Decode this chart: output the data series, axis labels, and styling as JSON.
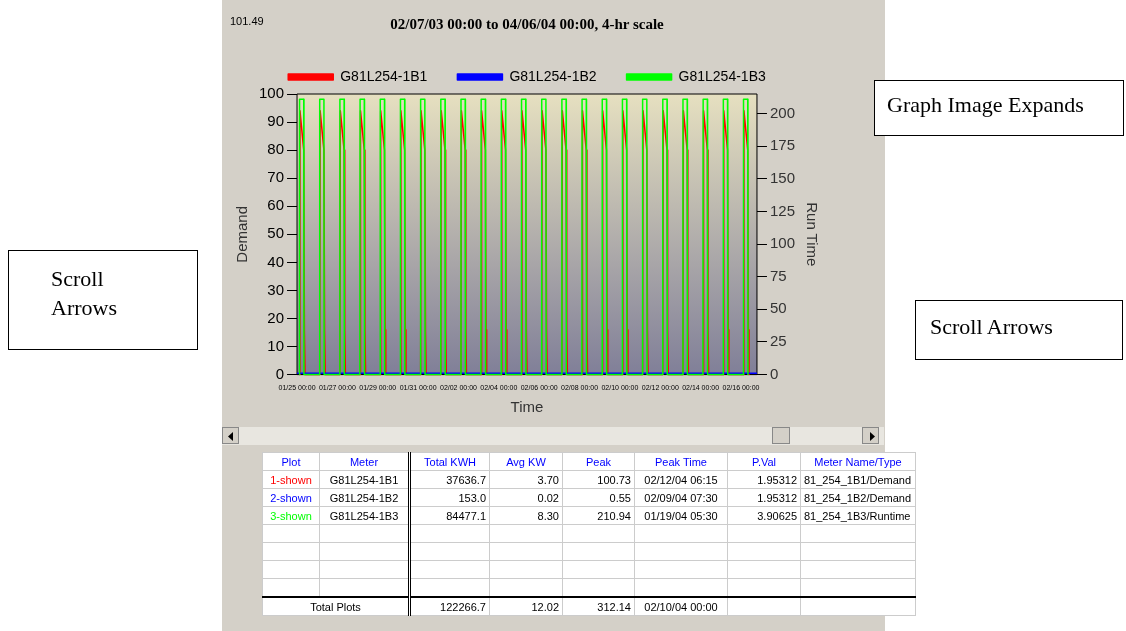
{
  "chart_data": {
    "type": "line",
    "title": "02/07/03 00:00 to 04/06/04 00:00, 4-hr scale",
    "xlabel": "Time",
    "ylabel": "Demand",
    "y2label": "Run Time",
    "legend": "top",
    "marker": "none",
    "xlim": [
      "--01-25T00:00",
      "--02-16T19:00"
    ],
    "xticks": [
      {
        "value": "--01-25T00:00",
        "label": "01/25 00:00"
      },
      {
        "value": "--01-27T00:00",
        "label": "01/27 00:00"
      },
      {
        "value": "--01-29T00:00",
        "label": "01/29 00:00"
      },
      {
        "value": "--01-31T00:00",
        "label": "01/31 00:00"
      },
      {
        "value": "--02-02T00:00",
        "label": "02/02 00:00"
      },
      {
        "value": "--02-04T00:00",
        "label": "02/04 00:00"
      },
      {
        "value": "--02-06T00:00",
        "label": "02/06 00:00"
      },
      {
        "value": "--02-08T00:00",
        "label": "02/08 00:00"
      },
      {
        "value": "--02-10T00:00",
        "label": "02/10 00:00"
      },
      {
        "value": "--02-12T00:00",
        "label": "02/12 00:00"
      },
      {
        "value": "--02-14T00:00",
        "label": "02/14 00:00"
      },
      {
        "value": "--02-16T00:00",
        "label": "02/16 00:00"
      }
    ],
    "ylim": [
      0,
      100
    ],
    "yticks": [
      0,
      10,
      20,
      30,
      40,
      50,
      60,
      70,
      80,
      90,
      100
    ],
    "y2lim": [
      0,
      215
    ],
    "y2ticks": [
      0,
      25,
      50,
      75,
      100,
      125,
      150,
      175,
      200
    ],
    "series": [
      {
        "name": "G81L254-1B1",
        "color": "#ff0000",
        "axis": "y",
        "x": [
          "--01-25T03:00",
          "--01-25T03:30",
          "--01-25T08:00",
          "--01-25T08:45",
          "--01-25T09:30",
          "--01-26T03:00",
          "--01-26T03:30",
          "--01-26T08:00",
          "--01-26T08:45",
          "--01-26T09:30",
          "--01-27T03:00",
          "--01-27T03:30",
          "--01-27T08:00",
          "--01-27T08:45",
          "--01-27T09:30",
          "--01-28T03:00",
          "--01-28T03:30",
          "--01-28T08:00",
          "--01-28T08:45",
          "--01-28T09:30",
          "--01-29T03:00",
          "--01-29T03:30",
          "--01-29T08:00",
          "--01-29T08:45",
          "--01-29T09:30",
          "--01-30T03:00",
          "--01-30T03:30",
          "--01-30T08:00",
          "--01-30T08:45",
          "--01-30T09:30",
          "--01-31T03:00",
          "--01-31T03:30",
          "--01-31T08:00",
          "--01-31T08:45",
          "--01-31T09:30",
          "--02-01T03:00",
          "--02-01T03:30",
          "--02-01T08:00",
          "--02-01T08:45",
          "--02-01T09:30",
          "--02-02T03:00",
          "--02-02T03:30",
          "--02-02T08:00",
          "--02-02T08:45",
          "--02-02T09:30",
          "--02-03T03:00",
          "--02-03T03:30",
          "--02-03T08:00",
          "--02-03T08:45",
          "--02-03T09:30",
          "--02-04T03:00",
          "--02-04T03:30",
          "--02-04T08:00",
          "--02-04T08:45",
          "--02-04T09:30",
          "--02-05T03:00",
          "--02-05T03:30",
          "--02-05T08:00",
          "--02-05T08:45",
          "--02-05T09:30",
          "--02-06T03:00",
          "--02-06T03:30",
          "--02-06T08:00",
          "--02-06T08:45",
          "--02-06T09:30",
          "--02-07T03:00",
          "--02-07T03:30",
          "--02-07T08:00",
          "--02-07T08:45",
          "--02-07T09:30",
          "--02-08T03:00",
          "--02-08T03:30",
          "--02-08T08:00",
          "--02-08T08:45",
          "--02-08T09:30",
          "--02-09T03:00",
          "--02-09T03:30",
          "--02-09T08:00",
          "--02-09T08:45",
          "--02-09T09:30",
          "--02-10T03:00",
          "--02-10T03:30",
          "--02-10T08:00",
          "--02-10T08:45",
          "--02-10T09:30",
          "--02-11T03:00",
          "--02-11T03:30",
          "--02-11T08:00",
          "--02-11T08:45",
          "--02-11T09:30",
          "--02-12T03:00",
          "--02-12T03:30",
          "--02-12T08:00",
          "--02-12T08:45",
          "--02-12T09:30",
          "--02-13T03:00",
          "--02-13T03:30",
          "--02-13T08:00",
          "--02-13T08:45",
          "--02-13T09:30",
          "--02-14T03:00",
          "--02-14T03:30",
          "--02-14T08:00",
          "--02-14T08:45",
          "--02-14T09:30",
          "--02-15T03:00",
          "--02-15T03:30",
          "--02-15T08:00",
          "--02-15T08:45",
          "--02-15T09:30",
          "--02-16T03:00",
          "--02-16T03:30",
          "--02-16T08:00",
          "--02-16T08:45",
          "--02-16T09:30"
        ],
        "values": [
          0,
          94,
          80,
          16,
          0,
          0,
          94,
          80,
          16,
          0,
          0,
          94,
          80,
          16,
          0,
          0,
          94,
          80,
          16,
          0,
          0,
          94,
          80,
          16,
          0,
          0,
          94,
          80,
          16,
          0,
          0,
          94,
          80,
          16,
          0,
          0,
          94,
          80,
          16,
          0,
          0,
          94,
          80,
          16,
          0,
          0,
          94,
          80,
          16,
          0,
          0,
          94,
          80,
          16,
          0,
          0,
          94,
          80,
          16,
          0,
          0,
          94,
          80,
          16,
          0,
          0,
          94,
          80,
          16,
          0,
          0,
          94,
          80,
          16,
          0,
          0,
          94,
          80,
          16,
          0,
          0,
          94,
          80,
          16,
          0,
          0,
          94,
          80,
          16,
          0,
          0,
          94,
          80,
          16,
          0,
          0,
          94,
          80,
          16,
          0,
          0,
          94,
          80,
          16,
          0,
          0,
          94,
          80,
          16,
          0,
          0,
          94,
          80,
          16,
          0
        ]
      },
      {
        "name": "G81L254-1B2",
        "color": "#0000ff",
        "axis": "y",
        "x": [
          "--01-25T00:00",
          "--02-16T19:00"
        ],
        "values": [
          0.5,
          0.5
        ]
      },
      {
        "name": "G81L254-1B3",
        "color": "#00ff00",
        "axis": "y2",
        "x": [
          "--01-25T02:45",
          "--01-25T03:00",
          "--01-25T08:00",
          "--01-25T08:15",
          "--01-26T02:45",
          "--01-26T03:00",
          "--01-26T08:00",
          "--01-26T08:15",
          "--01-27T02:45",
          "--01-27T03:00",
          "--01-27T08:00",
          "--01-27T08:15",
          "--01-28T02:45",
          "--01-28T03:00",
          "--01-28T08:00",
          "--01-28T08:15",
          "--01-29T02:45",
          "--01-29T03:00",
          "--01-29T08:00",
          "--01-29T08:15",
          "--01-30T02:45",
          "--01-30T03:00",
          "--01-30T08:00",
          "--01-30T08:15",
          "--01-31T02:45",
          "--01-31T03:00",
          "--01-31T08:00",
          "--01-31T08:15",
          "--02-01T02:45",
          "--02-01T03:00",
          "--02-01T08:00",
          "--02-01T08:15",
          "--02-02T02:45",
          "--02-02T03:00",
          "--02-02T08:00",
          "--02-02T08:15",
          "--02-03T02:45",
          "--02-03T03:00",
          "--02-03T08:00",
          "--02-03T08:15",
          "--02-04T02:45",
          "--02-04T03:00",
          "--02-04T08:00",
          "--02-04T08:15",
          "--02-05T02:45",
          "--02-05T03:00",
          "--02-05T08:00",
          "--02-05T08:15",
          "--02-06T02:45",
          "--02-06T03:00",
          "--02-06T08:00",
          "--02-06T08:15",
          "--02-07T02:45",
          "--02-07T03:00",
          "--02-07T08:00",
          "--02-07T08:15",
          "--02-08T02:45",
          "--02-08T03:00",
          "--02-08T08:00",
          "--02-08T08:15",
          "--02-09T02:45",
          "--02-09T03:00",
          "--02-09T08:00",
          "--02-09T08:15",
          "--02-10T02:45",
          "--02-10T03:00",
          "--02-10T08:00",
          "--02-10T08:15",
          "--02-11T02:45",
          "--02-11T03:00",
          "--02-11T08:00",
          "--02-11T08:15",
          "--02-12T02:45",
          "--02-12T03:00",
          "--02-12T08:00",
          "--02-12T08:15",
          "--02-13T02:45",
          "--02-13T03:00",
          "--02-13T08:00",
          "--02-13T08:15",
          "--02-14T02:45",
          "--02-14T03:00",
          "--02-14T08:00",
          "--02-14T08:15",
          "--02-15T02:45",
          "--02-15T03:00",
          "--02-15T08:00",
          "--02-15T08:15",
          "--02-16T02:45",
          "--02-16T03:00",
          "--02-16T08:00",
          "--02-16T08:15"
        ],
        "values": [
          0,
          211,
          211,
          0,
          0,
          211,
          211,
          0,
          0,
          211,
          211,
          0,
          0,
          211,
          211,
          0,
          0,
          211,
          211,
          0,
          0,
          211,
          211,
          0,
          0,
          211,
          211,
          0,
          0,
          211,
          211,
          0,
          0,
          211,
          211,
          0,
          0,
          211,
          211,
          0,
          0,
          211,
          211,
          0,
          0,
          211,
          211,
          0,
          0,
          211,
          211,
          0,
          0,
          211,
          211,
          0,
          0,
          211,
          211,
          0,
          0,
          211,
          211,
          0,
          0,
          211,
          211,
          0,
          0,
          211,
          211,
          0,
          0,
          211,
          211,
          0,
          0,
          211,
          211,
          0,
          0,
          211,
          211,
          0,
          0,
          211,
          211,
          0,
          0,
          211,
          211,
          0
        ]
      }
    ],
    "annotations": [
      "101.49",
      "Scroll Arrows",
      "Graph Image Expands",
      "Scroll Arrows",
      "Plot",
      "Meter",
      "Total KWH",
      "Avg KW",
      "Peak",
      "Peak Time",
      "P.Val",
      "Meter Name/Type",
      "1-shown",
      "G81L254-1B1",
      "37636.7",
      "3.70",
      "100.73",
      "02/12/04 06:15",
      "1.95312",
      "81_254_1B1/Demand",
      "2-shown",
      "G81L254-1B2",
      "153.0",
      "0.02",
      "0.55",
      "02/09/04 07:30",
      "1.95312",
      "81_254_1B2/Demand",
      "3-shown",
      "G81L254-1B3",
      "84477.1",
      "8.30",
      "210.94",
      "01/19/04 05:30",
      "3.90625",
      "81_254_1B3/Runtime",
      "Total Plots",
      "122266.7",
      "12.02",
      "312.14",
      "02/10/04 00:00"
    ]
  }
}
